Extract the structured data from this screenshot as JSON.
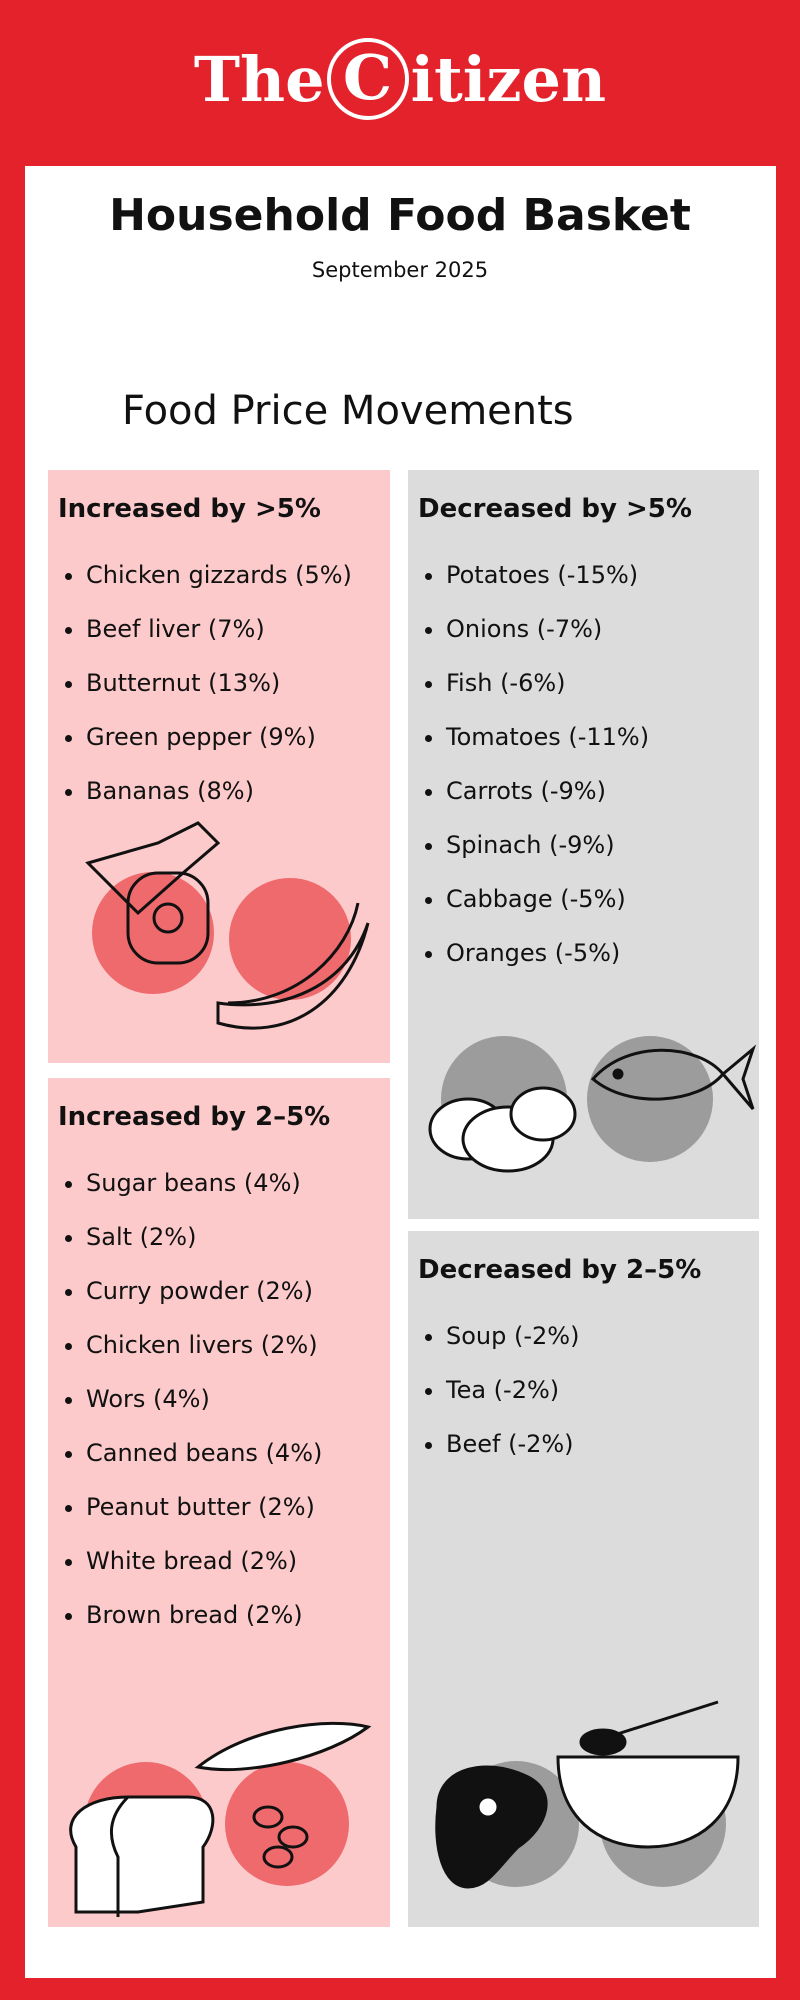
{
  "header": {
    "brand": [
      "The",
      "C",
      "itizen"
    ],
    "title": "Household Food Basket",
    "subtitle": "September 2025"
  },
  "section_title": "Food Price Movements",
  "panels": [
    {
      "title": "Increased by >5%",
      "items": [
        "Chicken gizzards (5%)",
        "Beef liver (7%)",
        "Butternut (13%)",
        "Green pepper (9%)",
        "Bananas (8%)"
      ]
    },
    {
      "title": "Decreased by >5%",
      "items": [
        "Potatoes (-15%)",
        "Onions (-7%)",
        "Fish (-6%)",
        "Tomatoes (-11%)",
        "Carrots (-9%)",
        "Spinach (-9%)",
        "Cabbage (-5%)",
        "Oranges (-5%)"
      ]
    },
    {
      "title": "Increased by 2–5%",
      "items": [
        "Sugar beans (4%)",
        "Salt (2%)",
        "Curry powder (2%)",
        "Chicken livers (2%)",
        "Wors (4%)",
        "Canned beans (4%)",
        "Peanut butter (2%)",
        "White bread (2%)",
        "Brown bread (2%)"
      ]
    },
    {
      "title": "Decreased by 2–5%",
      "items": [
        "Soup (-2%)",
        "Tea (-2%)",
        "Beef (-2%)"
      ]
    }
  ]
}
